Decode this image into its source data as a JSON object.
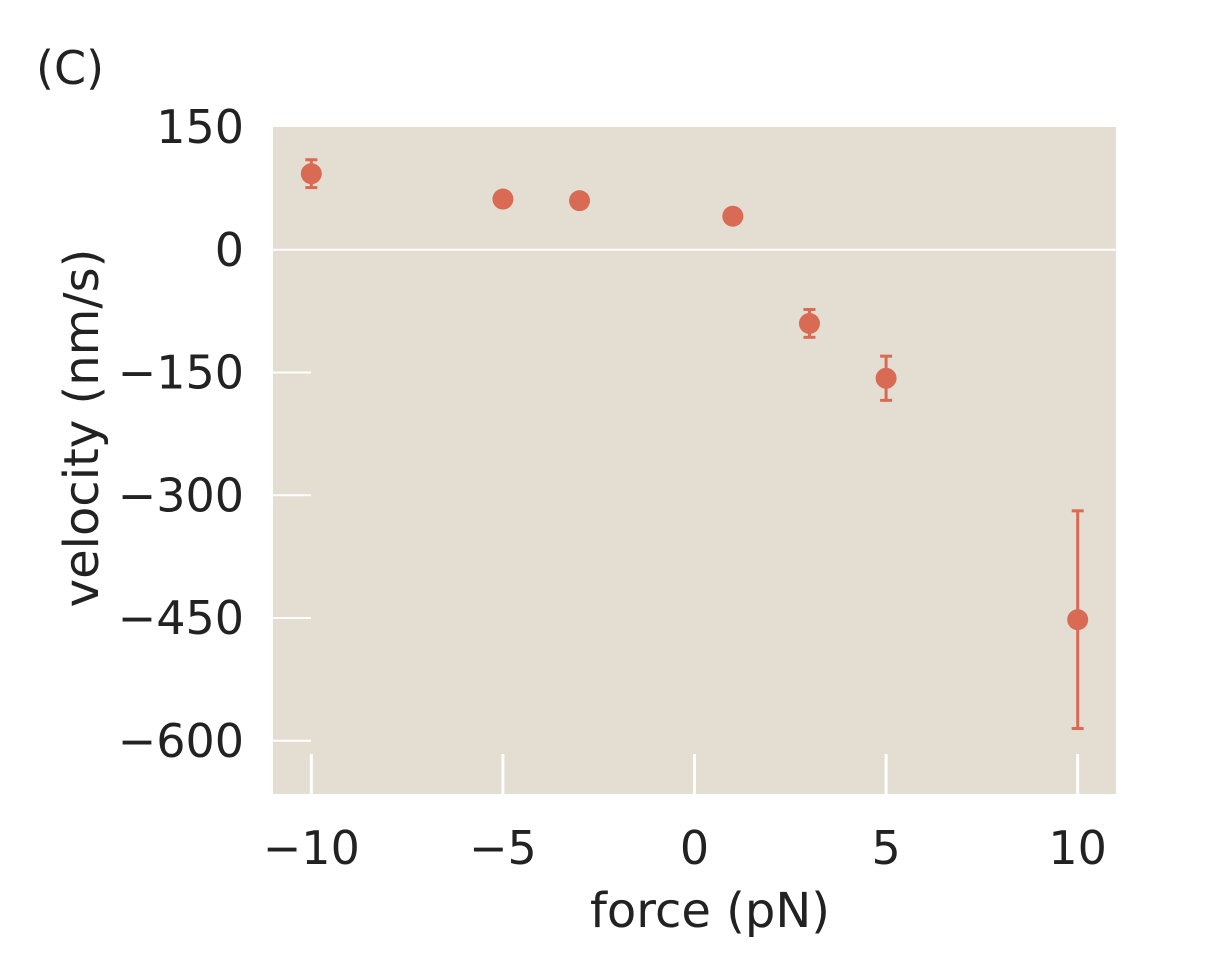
{
  "panel_label": "(C)",
  "colors": {
    "background": "#e3ddd2",
    "grid": "#ffffff",
    "marker": "#d96b55",
    "text": "#222222"
  },
  "chart_data": {
    "type": "scatter",
    "title": "",
    "xlabel": "force (pN)",
    "ylabel": "velocity (nm/s)",
    "xlim": [
      -11,
      11
    ],
    "ylim": [
      -665,
      150
    ],
    "xticks": [
      -10,
      -5,
      0,
      5,
      10
    ],
    "xtick_labels": [
      "−10",
      "−5",
      "0",
      "5",
      "10"
    ],
    "yticks": [
      150,
      0,
      -150,
      -300,
      -450,
      -600
    ],
    "ytick_labels": [
      "150",
      "0",
      "−150",
      "−300",
      "−450",
      "−600"
    ],
    "grid": true,
    "legend": "none",
    "series": [
      {
        "x": [
          -10,
          -5,
          -3,
          1,
          3,
          5,
          10
        ],
        "y": [
          93,
          62,
          60,
          41,
          -90,
          -157,
          -452
        ],
        "err": [
          17,
          0,
          0,
          0,
          17,
          27,
          133
        ]
      }
    ]
  }
}
